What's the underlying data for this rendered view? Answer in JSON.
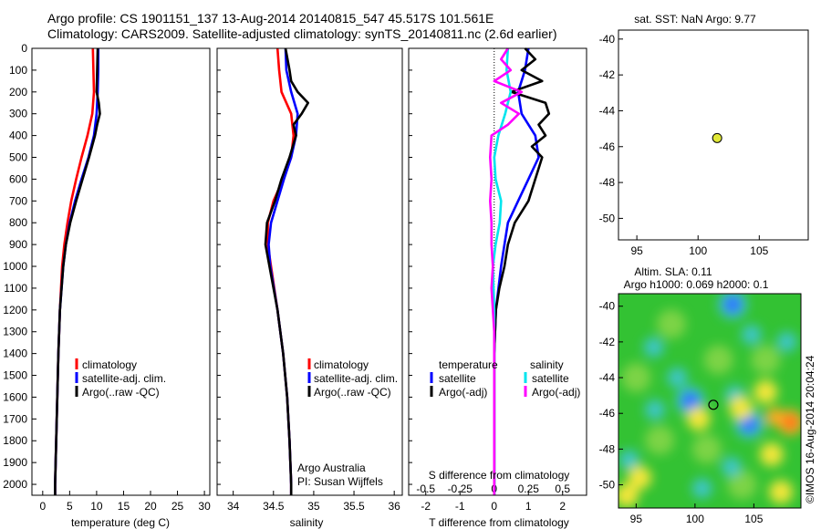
{
  "header": {
    "line1": "Argo profile: CS 1901151_137 13-Aug-2014 20140815_547 45.517S 101.561E",
    "line2": "Climatology: CARS2009. Satellite-adjusted climatology: synTS_20140811.nc (2.6d earlier)"
  },
  "colors": {
    "climatology": "#ff0000",
    "satellite": "#0000ff",
    "argo": "#000000",
    "sal_satellite": "#00e5ee",
    "sal_argo": "#ff00ff"
  },
  "chart_data": [
    {
      "type": "line",
      "panel": "temperature",
      "xlabel": "temperature (deg C)",
      "ylabel": "",
      "xlim": [
        -2,
        31
      ],
      "ylim": [
        0,
        2050
      ],
      "xticks": [
        0,
        5,
        10,
        15,
        20,
        25,
        30
      ],
      "yticks": [
        0,
        100,
        200,
        300,
        400,
        500,
        600,
        700,
        800,
        900,
        1000,
        1100,
        1200,
        1300,
        1400,
        1500,
        1600,
        1700,
        1800,
        1900,
        2000
      ],
      "legend": {
        "position": "lower-right",
        "entries": [
          "climatology",
          "satellite-adj. clim.",
          "Argo(..raw -QC)"
        ]
      },
      "series": [
        {
          "name": "climatology",
          "depth": [
            0,
            100,
            200,
            300,
            400,
            500,
            600,
            700,
            800,
            900,
            1000,
            1200,
            1400,
            1600,
            1800,
            2000,
            2050
          ],
          "values": [
            9.3,
            9.4,
            9.5,
            9.2,
            8.3,
            7.2,
            6.2,
            5.3,
            4.6,
            4.0,
            3.6,
            3.2,
            2.9,
            2.7,
            2.5,
            2.3,
            2.3
          ]
        },
        {
          "name": "satellite-adj. clim.",
          "depth": [
            0,
            100,
            200,
            300,
            400,
            500,
            600,
            700,
            800,
            900,
            1000,
            1200,
            1400,
            1600,
            1800,
            2000,
            2050
          ],
          "values": [
            10.3,
            10.3,
            10.2,
            10.0,
            9.5,
            8.5,
            7.2,
            6.0,
            5.0,
            4.3,
            3.8,
            3.2,
            2.9,
            2.7,
            2.5,
            2.3,
            2.3
          ]
        },
        {
          "name": "Argo(..raw -QC)",
          "depth": [
            0,
            100,
            200,
            250,
            300,
            350,
            400,
            500,
            600,
            700,
            800,
            900,
            1000,
            1200,
            1400,
            1600,
            1800,
            2000,
            2050
          ],
          "values": [
            10.2,
            10.1,
            10.0,
            10.4,
            10.6,
            10.1,
            9.7,
            8.6,
            7.4,
            6.2,
            5.1,
            4.3,
            3.8,
            3.2,
            2.9,
            2.7,
            2.5,
            2.3,
            2.3
          ]
        }
      ]
    },
    {
      "type": "line",
      "panel": "salinity",
      "xlabel": "salinity",
      "ylabel": "",
      "xlim": [
        33.8,
        36.1
      ],
      "ylim": [
        0,
        2050
      ],
      "xticks": [
        34,
        34.5,
        35,
        35.5,
        36
      ],
      "legend": {
        "position": "lower-right",
        "entries": [
          "climatology",
          "satellite-adj. clim.",
          "Argo(..raw -QC)"
        ]
      },
      "series": [
        {
          "name": "climatology",
          "depth": [
            0,
            100,
            200,
            300,
            400,
            500,
            600,
            700,
            800,
            900,
            1000,
            1200,
            1400,
            1600,
            1800,
            2000,
            2050
          ],
          "values": [
            34.55,
            34.57,
            34.6,
            34.72,
            34.75,
            34.72,
            34.62,
            34.5,
            34.43,
            34.43,
            34.47,
            34.55,
            34.62,
            34.67,
            34.7,
            34.72,
            34.72
          ]
        },
        {
          "name": "satellite-adj. clim.",
          "depth": [
            0,
            100,
            200,
            300,
            400,
            500,
            600,
            700,
            800,
            900,
            1000,
            1200,
            1400,
            1600,
            1800,
            2000,
            2050
          ],
          "values": [
            34.65,
            34.66,
            34.72,
            34.8,
            34.78,
            34.72,
            34.63,
            34.55,
            34.47,
            34.44,
            34.46,
            34.55,
            34.62,
            34.67,
            34.7,
            34.72,
            34.72
          ]
        },
        {
          "name": "Argo(..raw -QC)",
          "depth": [
            0,
            100,
            150,
            200,
            250,
            300,
            350,
            400,
            500,
            600,
            700,
            800,
            900,
            1000,
            1200,
            1400,
            1600,
            1800,
            2000,
            2050
          ],
          "values": [
            34.65,
            34.7,
            34.72,
            34.8,
            34.93,
            34.85,
            34.75,
            34.78,
            34.7,
            34.6,
            34.52,
            34.42,
            34.4,
            34.45,
            34.55,
            34.62,
            34.67,
            34.7,
            34.72,
            34.72
          ]
        }
      ]
    },
    {
      "type": "line",
      "panel": "difference",
      "xlabel": "T difference from climatology",
      "xlabel_top": "S difference from climatology",
      "ylabel": "",
      "xlim": [
        -2.5,
        2.7
      ],
      "ylim": [
        0,
        2050
      ],
      "xticks": [
        -2,
        -1,
        0,
        1,
        2
      ],
      "xtick_labels": [
        "-2",
        "-1",
        "0",
        "1",
        "2"
      ],
      "xticks_top": [
        -0.5,
        -0.25,
        0,
        0.25,
        0.5
      ],
      "xtick_labels_top": [
        "-0.5",
        "-0.25",
        "0",
        "0.25",
        "0.5"
      ],
      "top_scale_factor": 4,
      "zero_line": true,
      "legend": {
        "position": "lower-right",
        "temperature_title": "temperature",
        "salinity_title": "salinity",
        "entries": [
          "satellite",
          "Argo(-adj)",
          "satellite",
          "Argo(-adj)"
        ]
      },
      "series": [
        {
          "name": "satellite",
          "group": "temperature",
          "depth": [
            0,
            100,
            200,
            300,
            400,
            500,
            600,
            700,
            800,
            900,
            1000,
            1200,
            1400,
            1600,
            1800,
            2000,
            2050
          ],
          "values": [
            1.0,
            0.9,
            0.7,
            0.8,
            1.2,
            1.3,
            1.0,
            0.7,
            0.4,
            0.3,
            0.2,
            0.05,
            0.0,
            0.0,
            0.0,
            0.0,
            0.0
          ]
        },
        {
          "name": "Argo(-adj)",
          "group": "temperature",
          "depth": [
            0,
            50,
            100,
            150,
            200,
            250,
            300,
            350,
            400,
            450,
            500,
            600,
            700,
            800,
            900,
            1000,
            1100,
            1200,
            1400,
            1600,
            1800,
            2000,
            2050
          ],
          "values": [
            0.9,
            1.2,
            0.8,
            1.4,
            0.5,
            1.5,
            1.6,
            1.3,
            1.5,
            1.1,
            1.4,
            1.2,
            1.0,
            0.6,
            0.4,
            0.3,
            0.15,
            0.05,
            0.0,
            0.0,
            0.0,
            0.0,
            0.0
          ]
        },
        {
          "name": "satellite",
          "group": "salinity",
          "depth": [
            0,
            100,
            200,
            300,
            400,
            500,
            600,
            700,
            800,
            900,
            1000,
            1200,
            1400,
            1600,
            1800,
            2000,
            2050
          ],
          "values": [
            0.1,
            0.09,
            0.12,
            0.08,
            0.03,
            0.0,
            0.01,
            0.05,
            0.04,
            0.01,
            -0.01,
            0.0,
            0.0,
            0.0,
            0.0,
            0.0,
            0.0
          ]
        },
        {
          "name": "Argo(-adj)",
          "group": "salinity",
          "depth": [
            0,
            50,
            100,
            150,
            200,
            250,
            300,
            350,
            400,
            500,
            600,
            700,
            800,
            900,
            1000,
            1100,
            1200,
            1300,
            1400,
            1600,
            1800,
            2000,
            2050
          ],
          "values": [
            0.1,
            0.05,
            0.12,
            0.0,
            0.2,
            0.05,
            0.18,
            0.1,
            -0.02,
            -0.03,
            -0.02,
            -0.03,
            -0.02,
            -0.02,
            -0.01,
            -0.02,
            -0.01,
            0.0,
            0.0,
            0.0,
            0.0,
            0.0,
            0.0
          ]
        }
      ]
    },
    {
      "type": "scatter",
      "panel": "sst-map",
      "title": "sat. SST: NaN Argo: 9.77",
      "xlim": [
        93.5,
        109
      ],
      "ylim": [
        -51.2,
        -39.5
      ],
      "xticks": [
        95,
        100,
        105
      ],
      "yticks": [
        -40,
        -42,
        -44,
        -46,
        -48,
        -50
      ],
      "marker_color": "#e1e837",
      "points": [
        {
          "x": 101.56,
          "y": -45.52
        }
      ]
    },
    {
      "type": "heatmap",
      "panel": "sla-map",
      "title": "Altim. SLA: 0.11",
      "subtitle": "Argo h1000: 0.069 h2000: 0.1",
      "xlim": [
        93.5,
        109
      ],
      "ylim": [
        -51.3,
        -39.3
      ],
      "xticks": [
        95,
        100,
        105
      ],
      "yticks": [
        -40,
        -42,
        -44,
        -46,
        -48,
        -50
      ],
      "side_label": "©IMOS 16-Aug-2014 20:04:24",
      "marker": {
        "x": 101.56,
        "y": -45.52
      },
      "blobs": [
        {
          "x": 103.2,
          "y": -39.9,
          "level": "blue"
        },
        {
          "x": 104.8,
          "y": -41.6,
          "level": "cyan"
        },
        {
          "x": 96.5,
          "y": -42.3,
          "level": "cyan"
        },
        {
          "x": 107.8,
          "y": -42.0,
          "level": "cyan"
        },
        {
          "x": 98.5,
          "y": -44.0,
          "level": "cyan"
        },
        {
          "x": 99.6,
          "y": -45.3,
          "level": "blue"
        },
        {
          "x": 103.4,
          "y": -45.0,
          "level": "cyan"
        },
        {
          "x": 96.6,
          "y": -45.8,
          "level": "cyan"
        },
        {
          "x": 104.6,
          "y": -46.6,
          "level": "blue"
        },
        {
          "x": 103.1,
          "y": -49.0,
          "level": "cyan"
        },
        {
          "x": 94.4,
          "y": -48.6,
          "level": "cyan"
        },
        {
          "x": 100.6,
          "y": -50.2,
          "level": "cyan"
        },
        {
          "x": 106.0,
          "y": -44.8,
          "level": "yellow"
        },
        {
          "x": 103.9,
          "y": -45.7,
          "level": "yellow"
        },
        {
          "x": 106.8,
          "y": -46.2,
          "level": "orange"
        },
        {
          "x": 108.1,
          "y": -46.5,
          "level": "red"
        },
        {
          "x": 100.3,
          "y": -46.3,
          "level": "yellow"
        },
        {
          "x": 94.2,
          "y": -50.6,
          "level": "yellow"
        },
        {
          "x": 95.3,
          "y": -49.6,
          "level": "yellow"
        },
        {
          "x": 106.5,
          "y": -48.3,
          "level": "yellow"
        },
        {
          "x": 107.3,
          "y": -50.4,
          "level": "yellow"
        }
      ]
    }
  ],
  "annotations": {
    "credit_line1": "Argo Australia",
    "credit_line2": "PI: Susan Wijffels"
  }
}
